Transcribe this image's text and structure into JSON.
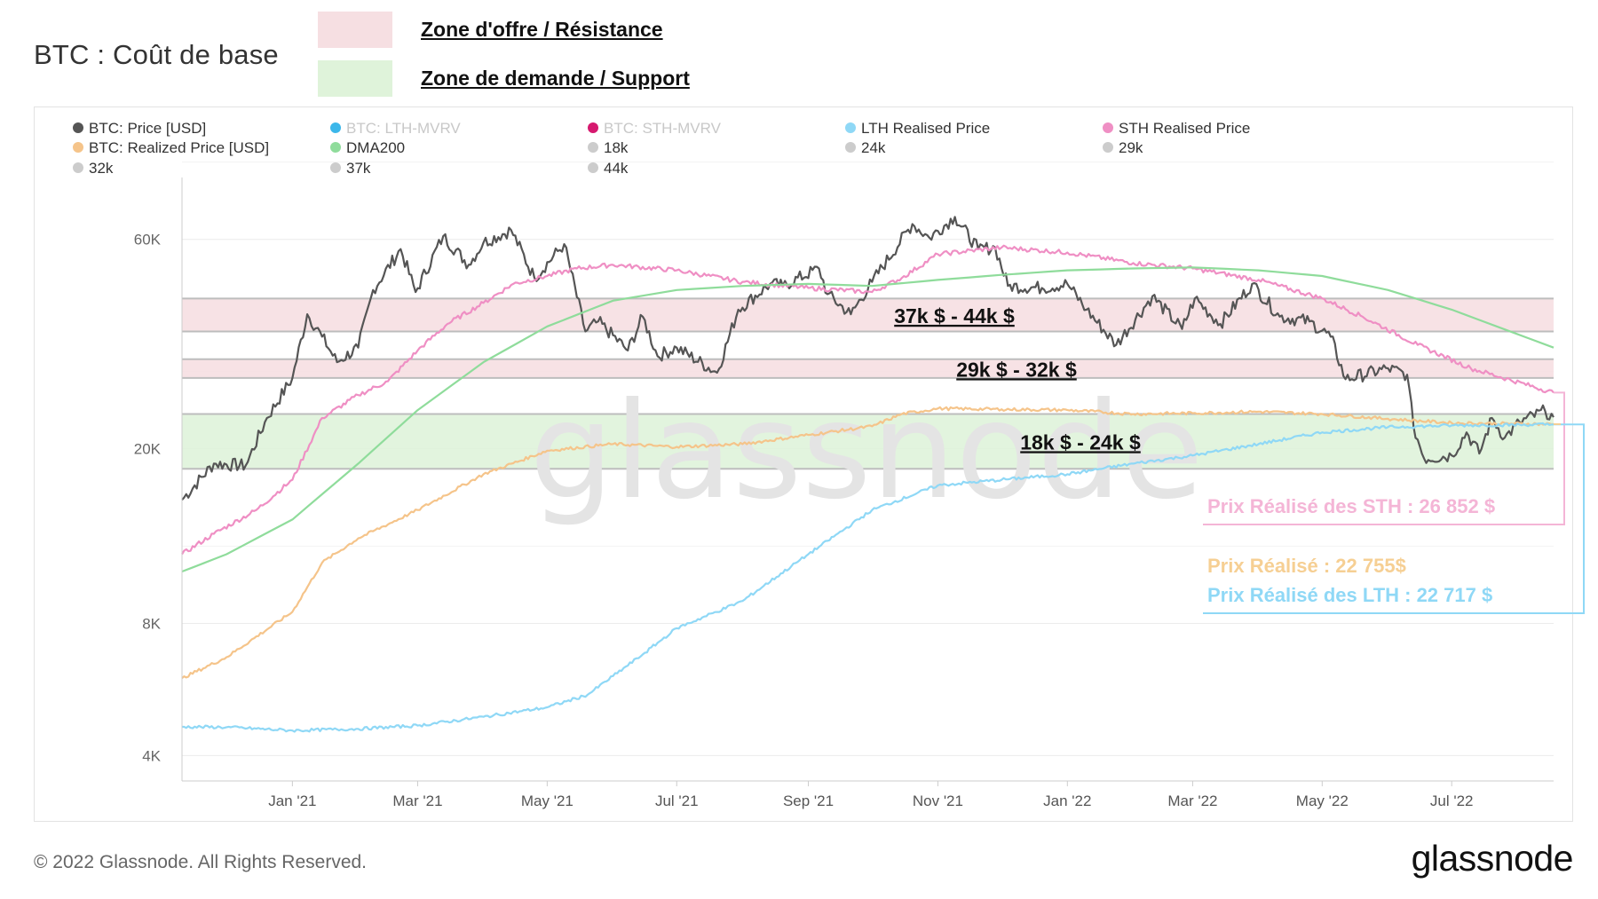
{
  "header": {
    "title": "BTC : Coût de base",
    "key": [
      {
        "label": "Zone d'offre / Résistance",
        "color": "#f6dfe2"
      },
      {
        "label": "Zone de demande / Support",
        "color": "#dff3da"
      }
    ]
  },
  "footer": {
    "copyright": "© 2022 Glassnode. All Rights Reserved.",
    "brand": "glassnode",
    "watermark": "glassnode"
  },
  "chart_data": {
    "type": "line",
    "title": "BTC : Coût de base",
    "y_scale": "log",
    "ylim": [
      3500,
      100000
    ],
    "x_range": [
      "2020-11-10",
      "2022-08-18"
    ],
    "y_ticks": [
      {
        "value": 4000,
        "label": "4K"
      },
      {
        "value": 8000,
        "label": "8K"
      },
      {
        "value": 20000,
        "label": "20K"
      },
      {
        "value": 60000,
        "label": "60K"
      }
    ],
    "x_ticks": [
      {
        "date": "2021-01-01",
        "label": "Jan '21"
      },
      {
        "date": "2021-03-01",
        "label": "Mar '21"
      },
      {
        "date": "2021-05-01",
        "label": "May '21"
      },
      {
        "date": "2021-07-01",
        "label": "Jul '21"
      },
      {
        "date": "2021-09-01",
        "label": "Sep '21"
      },
      {
        "date": "2021-11-01",
        "label": "Nov '21"
      },
      {
        "date": "2022-01-01",
        "label": "Jan '22"
      },
      {
        "date": "2022-03-01",
        "label": "Mar '22"
      },
      {
        "date": "2022-05-01",
        "label": "May '22"
      },
      {
        "date": "2022-07-01",
        "label": "Jul '22"
      }
    ],
    "legend": [
      {
        "label": "BTC: Price [USD]",
        "color": "#555555",
        "active": true
      },
      {
        "label": "BTC: LTH-MVRV",
        "color": "#3bb7ea",
        "active": false
      },
      {
        "label": "BTC: STH-MVRV",
        "color": "#d6196f",
        "active": false
      },
      {
        "label": "LTH Realised Price",
        "color": "#8fd8f6",
        "active": true
      },
      {
        "label": "STH Realised Price",
        "color": "#ef8fc4",
        "active": true
      },
      {
        "label": "BTC: Realized Price [USD]",
        "color": "#f5c48a",
        "active": true
      },
      {
        "label": "DMA200",
        "color": "#8fdc9b",
        "active": true
      },
      {
        "label": "18k",
        "color": "#cccccc",
        "active": true
      },
      {
        "label": "24k",
        "color": "#cccccc",
        "active": true
      },
      {
        "label": "29k",
        "color": "#cccccc",
        "active": true
      },
      {
        "label": "32k",
        "color": "#cccccc",
        "active": true
      },
      {
        "label": "37k",
        "color": "#cccccc",
        "active": true
      },
      {
        "label": "44k",
        "color": "#cccccc",
        "active": true
      }
    ],
    "zones": [
      {
        "label": "37k $ - 44k $",
        "low": 37000,
        "high": 44000,
        "kind": "resistance"
      },
      {
        "label": "29k $ - 32k $",
        "low": 29000,
        "high": 32000,
        "kind": "resistance"
      },
      {
        "label": "18k $ - 24k $",
        "low": 18000,
        "high": 24000,
        "kind": "support"
      }
    ],
    "series": [
      {
        "name": "BTC: Price [USD]",
        "color": "#555555",
        "width": 2.2,
        "jitter": 0.035,
        "points": [
          [
            "2020-11-10",
            15300
          ],
          [
            "2020-11-25",
            18500
          ],
          [
            "2020-12-10",
            18300
          ],
          [
            "2020-12-20",
            23500
          ],
          [
            "2021-01-01",
            29000
          ],
          [
            "2021-01-08",
            40500
          ],
          [
            "2021-01-15",
            36000
          ],
          [
            "2021-01-22",
            31500
          ],
          [
            "2021-02-01",
            34000
          ],
          [
            "2021-02-08",
            46000
          ],
          [
            "2021-02-21",
            57000
          ],
          [
            "2021-02-28",
            45500
          ],
          [
            "2021-03-13",
            61000
          ],
          [
            "2021-03-25",
            52500
          ],
          [
            "2021-04-01",
            59000
          ],
          [
            "2021-04-14",
            63000
          ],
          [
            "2021-04-25",
            49000
          ],
          [
            "2021-05-09",
            58500
          ],
          [
            "2021-05-19",
            37000
          ],
          [
            "2021-05-25",
            39000
          ],
          [
            "2021-06-08",
            33500
          ],
          [
            "2021-06-15",
            40000
          ],
          [
            "2021-06-22",
            32500
          ],
          [
            "2021-07-01",
            34000
          ],
          [
            "2021-07-20",
            29800
          ],
          [
            "2021-07-30",
            41500
          ],
          [
            "2021-08-14",
            47500
          ],
          [
            "2021-08-20",
            47000
          ],
          [
            "2021-09-06",
            51500
          ],
          [
            "2021-09-10",
            45000
          ],
          [
            "2021-09-21",
            40500
          ],
          [
            "2021-10-01",
            48000
          ],
          [
            "2021-10-20",
            65000
          ],
          [
            "2021-10-28",
            60500
          ],
          [
            "2021-11-09",
            67500
          ],
          [
            "2021-11-20",
            57000
          ],
          [
            "2021-11-28",
            57500
          ],
          [
            "2021-12-04",
            47000
          ],
          [
            "2021-12-20",
            46500
          ],
          [
            "2022-01-01",
            47500
          ],
          [
            "2022-01-10",
            41500
          ],
          [
            "2022-01-24",
            34500
          ],
          [
            "2022-02-10",
            44500
          ],
          [
            "2022-02-24",
            37500
          ],
          [
            "2022-03-02",
            44000
          ],
          [
            "2022-03-14",
            38500
          ],
          [
            "2022-03-29",
            47500
          ],
          [
            "2022-04-11",
            40000
          ],
          [
            "2022-04-25",
            39000
          ],
          [
            "2022-05-05",
            36000
          ],
          [
            "2022-05-12",
            28800
          ],
          [
            "2022-06-01",
            30500
          ],
          [
            "2022-06-10",
            29500
          ],
          [
            "2022-06-13",
            22500
          ],
          [
            "2022-06-18",
            19000
          ],
          [
            "2022-07-01",
            19300
          ],
          [
            "2022-07-08",
            21800
          ],
          [
            "2022-07-14",
            19500
          ],
          [
            "2022-07-20",
            23500
          ],
          [
            "2022-07-26",
            21200
          ],
          [
            "2022-08-02",
            23000
          ],
          [
            "2022-08-14",
            24400
          ],
          [
            "2022-08-18",
            23600
          ]
        ]
      },
      {
        "name": "STH Realised Price",
        "color": "#ef8fc4",
        "width": 2.2,
        "jitter": 0.012,
        "points": [
          [
            "2020-11-10",
            11500
          ],
          [
            "2020-11-25",
            12800
          ],
          [
            "2020-12-15",
            14500
          ],
          [
            "2021-01-01",
            17000
          ],
          [
            "2021-01-15",
            23500
          ],
          [
            "2021-02-01",
            26500
          ],
          [
            "2021-02-15",
            28500
          ],
          [
            "2021-03-01",
            33500
          ],
          [
            "2021-03-15",
            38500
          ],
          [
            "2021-04-01",
            43000
          ],
          [
            "2021-04-15",
            47500
          ],
          [
            "2021-05-01",
            49500
          ],
          [
            "2021-05-15",
            51500
          ],
          [
            "2021-06-01",
            52500
          ],
          [
            "2021-07-01",
            51000
          ],
          [
            "2021-08-01",
            48000
          ],
          [
            "2021-09-01",
            46500
          ],
          [
            "2021-10-01",
            45500
          ],
          [
            "2021-10-15",
            49000
          ],
          [
            "2021-11-01",
            55500
          ],
          [
            "2021-12-01",
            57500
          ],
          [
            "2022-01-01",
            56000
          ],
          [
            "2022-02-01",
            53000
          ],
          [
            "2022-03-01",
            51500
          ],
          [
            "2022-04-01",
            48500
          ],
          [
            "2022-05-01",
            44000
          ],
          [
            "2022-05-20",
            40000
          ],
          [
            "2022-06-15",
            34500
          ],
          [
            "2022-07-10",
            30500
          ],
          [
            "2022-08-18",
            26852
          ]
        ]
      },
      {
        "name": "BTC: Realized Price [USD]",
        "color": "#f5c48a",
        "width": 2.2,
        "jitter": 0.008,
        "points": [
          [
            "2020-11-10",
            6000
          ],
          [
            "2020-12-01",
            6700
          ],
          [
            "2021-01-01",
            8500
          ],
          [
            "2021-01-15",
            11000
          ],
          [
            "2021-02-01",
            12500
          ],
          [
            "2021-03-01",
            14500
          ],
          [
            "2021-04-01",
            17500
          ],
          [
            "2021-05-01",
            19800
          ],
          [
            "2021-06-01",
            20500
          ],
          [
            "2021-07-01",
            20200
          ],
          [
            "2021-08-01",
            20500
          ],
          [
            "2021-09-01",
            21500
          ],
          [
            "2021-10-01",
            22500
          ],
          [
            "2021-10-15",
            24000
          ],
          [
            "2021-11-01",
            24700
          ],
          [
            "2021-12-01",
            24600
          ],
          [
            "2022-01-01",
            24500
          ],
          [
            "2022-02-01",
            24000
          ],
          [
            "2022-03-01",
            24100
          ],
          [
            "2022-04-01",
            24300
          ],
          [
            "2022-05-01",
            24000
          ],
          [
            "2022-06-01",
            23400
          ],
          [
            "2022-07-01",
            22900
          ],
          [
            "2022-08-18",
            22755
          ]
        ]
      },
      {
        "name": "LTH Realised Price",
        "color": "#8fd8f6",
        "width": 2.2,
        "jitter": 0.008,
        "points": [
          [
            "2020-11-10",
            4650
          ],
          [
            "2020-12-01",
            4640
          ],
          [
            "2021-01-01",
            4560
          ],
          [
            "2021-02-01",
            4600
          ],
          [
            "2021-03-01",
            4680
          ],
          [
            "2021-04-01",
            4900
          ],
          [
            "2021-05-01",
            5150
          ],
          [
            "2021-05-20",
            5500
          ],
          [
            "2021-06-15",
            6800
          ],
          [
            "2021-07-01",
            7800
          ],
          [
            "2021-08-01",
            9000
          ],
          [
            "2021-09-01",
            11500
          ],
          [
            "2021-10-01",
            14500
          ],
          [
            "2021-11-01",
            16500
          ],
          [
            "2021-12-01",
            17000
          ],
          [
            "2022-01-01",
            17500
          ],
          [
            "2022-02-01",
            18500
          ],
          [
            "2022-03-01",
            19300
          ],
          [
            "2022-04-01",
            20500
          ],
          [
            "2022-05-01",
            21800
          ],
          [
            "2022-06-01",
            22400
          ],
          [
            "2022-07-01",
            22600
          ],
          [
            "2022-08-18",
            22717
          ]
        ]
      },
      {
        "name": "DMA200",
        "color": "#8fdc9b",
        "width": 2.2,
        "jitter": 0,
        "points": [
          [
            "2020-11-10",
            10500
          ],
          [
            "2020-12-01",
            11500
          ],
          [
            "2021-01-01",
            13800
          ],
          [
            "2021-02-01",
            18500
          ],
          [
            "2021-03-01",
            24500
          ],
          [
            "2021-04-01",
            31500
          ],
          [
            "2021-05-01",
            38000
          ],
          [
            "2021-06-01",
            43500
          ],
          [
            "2021-07-01",
            46000
          ],
          [
            "2021-08-01",
            47000
          ],
          [
            "2021-09-01",
            47500
          ],
          [
            "2021-10-01",
            47000
          ],
          [
            "2021-11-01",
            48500
          ],
          [
            "2021-12-01",
            49800
          ],
          [
            "2022-01-01",
            51000
          ],
          [
            "2022-02-01",
            51500
          ],
          [
            "2022-03-01",
            51800
          ],
          [
            "2022-04-01",
            51000
          ],
          [
            "2022-05-01",
            49500
          ],
          [
            "2022-06-01",
            46000
          ],
          [
            "2022-07-01",
            41500
          ],
          [
            "2022-08-18",
            34000
          ]
        ]
      }
    ],
    "callouts": [
      {
        "text": "Prix Réalisé des STH : 26 852 $",
        "value": 26852,
        "color": "#f4b5d6"
      },
      {
        "text": "Prix Réalisé : 22 755$",
        "value": 22755,
        "color": "#f6cf93"
      },
      {
        "text": "Prix Réalisé des LTH : 22 717 $",
        "value": 22717,
        "color": "#8fd8f6"
      }
    ]
  }
}
